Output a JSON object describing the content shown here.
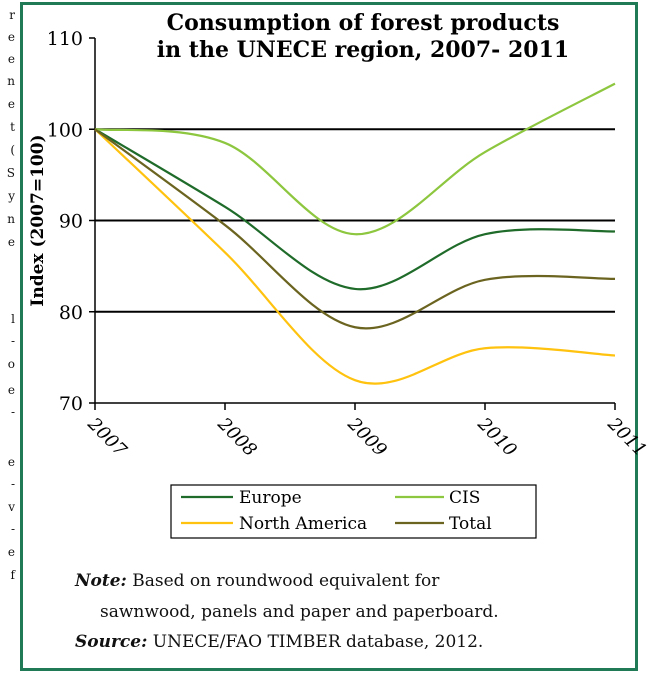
{
  "page_strip": [
    "r",
    "e",
    "e",
    "n",
    "e",
    "t",
    "(",
    "S",
    "y",
    "n",
    "e",
    "l",
    "-",
    "o",
    "e",
    "-",
    "e",
    "-",
    "v",
    "-",
    "e",
    "f"
  ],
  "note": {
    "label": "Note:",
    "line1": "Based on roundwood equivalent for",
    "line2": "sawnwood, panels and paper and paperboard."
  },
  "source": {
    "label": "Source:",
    "text": "UNECE/FAO TIMBER database, 2012."
  },
  "colors": {
    "frame": "#1f7a55",
    "europe": "#1f6b2a",
    "cis": "#8dc63f",
    "north_america": "#ffc20e",
    "total": "#6b6420"
  },
  "chart_data": {
    "type": "line",
    "title": [
      "Consumption of forest products",
      "in the UNECE region, 2007- 2011"
    ],
    "ylabel": "Index (2007=100)",
    "xlabel": "",
    "x": [
      "2007",
      "2008",
      "2009",
      "2010",
      "2011"
    ],
    "ylim": [
      70,
      110
    ],
    "yticks": [
      70,
      80,
      90,
      100,
      110
    ],
    "gridlines": [
      80,
      90,
      100
    ],
    "series": [
      {
        "name": "Europe",
        "color": "#1f6b2a",
        "values": [
          100,
          91.5,
          82.5,
          88.5,
          88.8
        ]
      },
      {
        "name": "CIS",
        "color": "#8dc63f",
        "values": [
          100,
          98.5,
          88.5,
          97.5,
          105
        ]
      },
      {
        "name": "North America",
        "color": "#ffc20e",
        "values": [
          100,
          86.5,
          72.5,
          76,
          75.2
        ]
      },
      {
        "name": "Total",
        "color": "#6b6420",
        "values": [
          100,
          89.5,
          78.3,
          83.5,
          83.6
        ]
      }
    ],
    "legend": "bottom",
    "legend_order": [
      "Europe",
      "CIS",
      "North America",
      "Total"
    ]
  }
}
